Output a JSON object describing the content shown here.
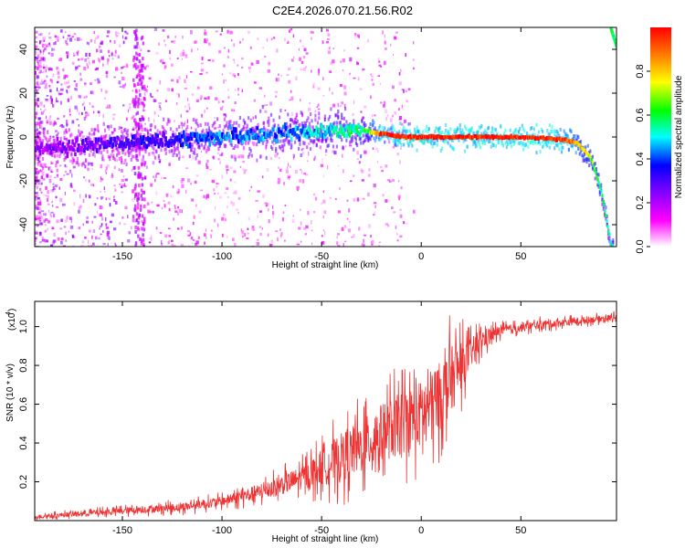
{
  "title": "C2E4.2026.070.21.56.R02",
  "chart_data": [
    {
      "type": "heatmap",
      "name": "spectrogram",
      "xlabel": "Height of straight line (km)",
      "ylabel": "Frequency (Hz)",
      "xlim": [
        -194,
        98
      ],
      "ylim": [
        -50,
        50
      ],
      "xticks": [
        -150,
        -100,
        -50,
        0,
        50
      ],
      "xtick_labels": [
        "-150",
        "-100",
        "-50",
        "0",
        "50"
      ],
      "yticks": [
        -40,
        -20,
        0,
        20,
        40
      ],
      "ytick_labels": [
        "-40",
        "-20",
        "0",
        "20",
        "40"
      ],
      "colorbar": {
        "label": "Normalized spectral amplitude",
        "range": [
          0,
          1
        ],
        "ticks": [
          0.0,
          0.2,
          0.4,
          0.6,
          0.8
        ],
        "tick_labels": [
          "0.0",
          "0.2",
          "0.4",
          "0.6",
          "0.8"
        ],
        "colors": [
          "#ffffff",
          "#ff00ff",
          "#8000ff",
          "#0000ff",
          "#00ffff",
          "#00ff00",
          "#ffff00",
          "#ff8000",
          "#ff0000"
        ]
      },
      "ridge": {
        "description": "dominant frequency track vs height",
        "points": [
          {
            "x": -190,
            "y": -5
          },
          {
            "x": -150,
            "y": -3
          },
          {
            "x": -120,
            "y": -1
          },
          {
            "x": -100,
            "y": 0
          },
          {
            "x": -60,
            "y": 2
          },
          {
            "x": -40,
            "y": 3
          },
          {
            "x": -30,
            "y": 3
          },
          {
            "x": -10,
            "y": 0
          },
          {
            "x": 0,
            "y": 0
          },
          {
            "x": 50,
            "y": 0
          },
          {
            "x": 70,
            "y": -1
          },
          {
            "x": 78,
            "y": -3
          },
          {
            "x": 85,
            "y": -10
          },
          {
            "x": 90,
            "y": -25
          },
          {
            "x": 93,
            "y": -40
          },
          {
            "x": 95,
            "y": -50
          }
        ],
        "amplitude": [
          {
            "x": -190,
            "a": 0.22
          },
          {
            "x": -150,
            "a": 0.3
          },
          {
            "x": -120,
            "a": 0.35
          },
          {
            "x": -100,
            "a": 0.42
          },
          {
            "x": -60,
            "a": 0.45
          },
          {
            "x": -35,
            "a": 0.55
          },
          {
            "x": -28,
            "a": 0.62
          },
          {
            "x": -20,
            "a": 0.95
          },
          {
            "x": 0,
            "a": 0.98
          },
          {
            "x": 50,
            "a": 0.98
          },
          {
            "x": 70,
            "a": 0.95
          },
          {
            "x": 80,
            "a": 0.8
          },
          {
            "x": 90,
            "a": 0.55
          },
          {
            "x": 95,
            "a": 0.5
          }
        ]
      },
      "upper_branch": [
        {
          "x": 94.5,
          "y": 50
        },
        {
          "x": 96,
          "y": 45
        },
        {
          "x": 98,
          "y": 40
        }
      ]
    },
    {
      "type": "line",
      "name": "snr",
      "xlabel": "Height of straight line (km)",
      "ylabel": "SNR (10 * v/v)",
      "scale_label": "(x10",
      "scale_exponent": "4",
      "xlim": [
        -194,
        98
      ],
      "ylim": [
        0,
        1.13
      ],
      "xticks": [
        -150,
        -100,
        -50,
        0,
        50
      ],
      "xtick_labels": [
        "-150",
        "-100",
        "-50",
        "0",
        "50"
      ],
      "yticks": [
        0.2,
        0.4,
        0.6,
        0.8,
        1.0
      ],
      "ytick_labels": [
        "0.2",
        "0.4",
        "0.6",
        "0.8",
        "1.0"
      ],
      "color": "#ee3333",
      "series": [
        {
          "name": "SNR trend",
          "points": [
            {
              "x": -194,
              "y": 0.02
            },
            {
              "x": -150,
              "y": 0.05
            },
            {
              "x": -120,
              "y": 0.07
            },
            {
              "x": -100,
              "y": 0.1
            },
            {
              "x": -80,
              "y": 0.15
            },
            {
              "x": -60,
              "y": 0.22
            },
            {
              "x": -45,
              "y": 0.3
            },
            {
              "x": -30,
              "y": 0.38
            },
            {
              "x": -20,
              "y": 0.45
            },
            {
              "x": -10,
              "y": 0.5
            },
            {
              "x": 0,
              "y": 0.55
            },
            {
              "x": 10,
              "y": 0.65
            },
            {
              "x": 20,
              "y": 0.8
            },
            {
              "x": 30,
              "y": 0.93
            },
            {
              "x": 40,
              "y": 0.98
            },
            {
              "x": 60,
              "y": 1.01
            },
            {
              "x": 80,
              "y": 1.03
            },
            {
              "x": 98,
              "y": 1.05
            }
          ],
          "noise_amplitude": [
            {
              "x": -194,
              "a": 0.02
            },
            {
              "x": -100,
              "a": 0.05
            },
            {
              "x": -60,
              "a": 0.12
            },
            {
              "x": -40,
              "a": 0.25
            },
            {
              "x": -20,
              "a": 0.3
            },
            {
              "x": 0,
              "a": 0.35
            },
            {
              "x": 15,
              "a": 0.35
            },
            {
              "x": 25,
              "a": 0.15
            },
            {
              "x": 40,
              "a": 0.05
            },
            {
              "x": 98,
              "a": 0.03
            }
          ]
        }
      ]
    }
  ]
}
